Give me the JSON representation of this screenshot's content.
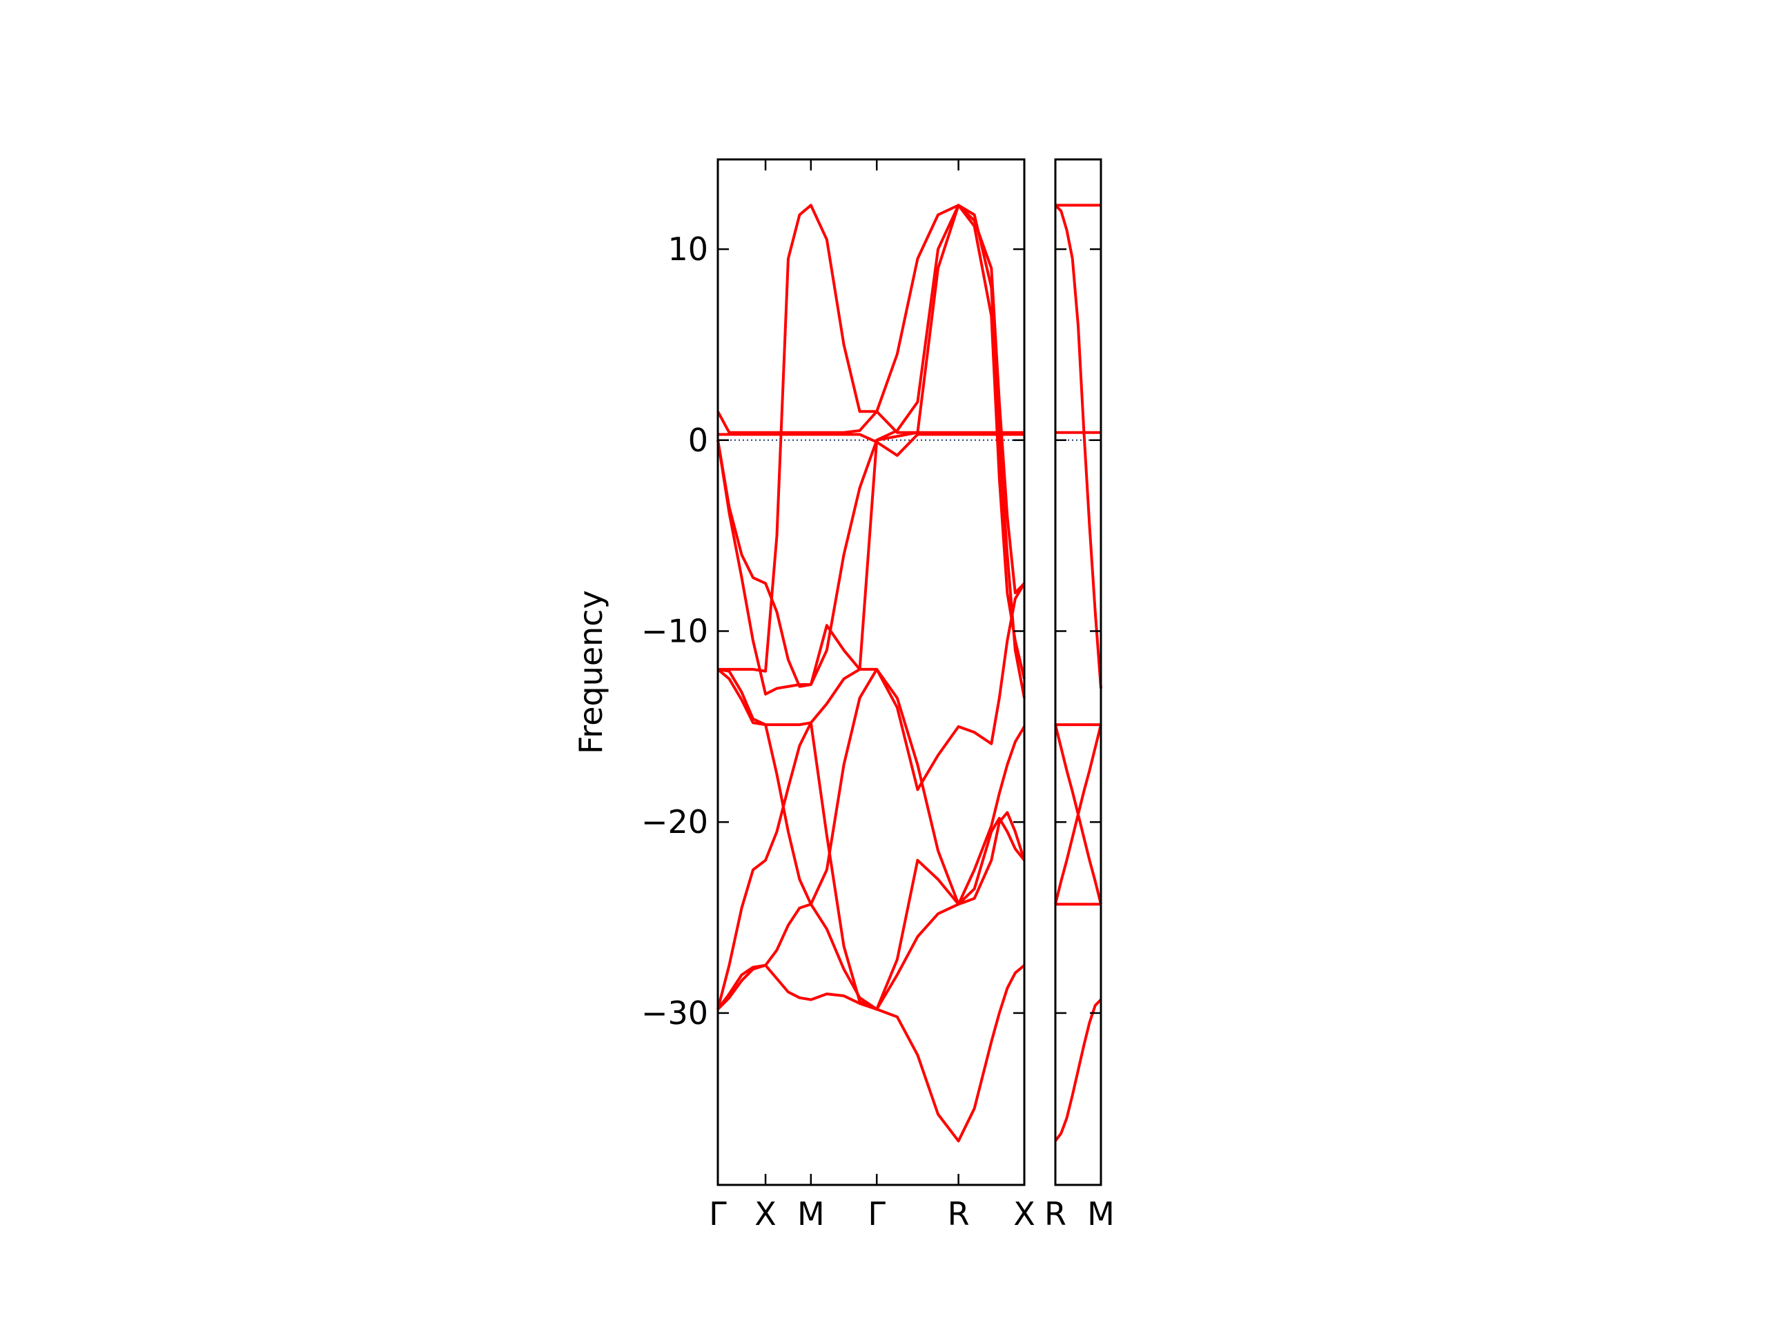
{
  "chart_data": [
    {
      "type": "line",
      "ylabel": "Frequency",
      "color": "#ff0000",
      "xlim": [
        0,
        270
      ],
      "ylim": [
        -39.0,
        14.7
      ],
      "xticks": [
        {
          "value": 0,
          "label": "Γ"
        },
        {
          "value": 42,
          "label": "X"
        },
        {
          "value": 82,
          "label": "M"
        },
        {
          "value": 140,
          "label": "Γ"
        },
        {
          "value": 212,
          "label": "R"
        },
        {
          "value": 270,
          "label": "X"
        }
      ],
      "yticks": [
        {
          "value": -30,
          "label": "−30"
        },
        {
          "value": -20,
          "label": "−20"
        },
        {
          "value": -10,
          "label": "−10"
        },
        0,
        10
      ],
      "ytick_labels": true,
      "hlines": [
        0
      ],
      "x": [
        0,
        10,
        21,
        31,
        42,
        52,
        62,
        72,
        82,
        96,
        111,
        125,
        140,
        158,
        176,
        194,
        212,
        226,
        241,
        248,
        255,
        262,
        270
      ],
      "series": [
        {
          "values": [
            -29.8,
            -29.2,
            -28.3,
            -27.7,
            -27.5,
            -28.2,
            -28.9,
            -29.2,
            -29.3,
            -29.0,
            -29.1,
            -29.5,
            -29.8,
            -30.2,
            -32.2,
            -35.3,
            -36.7,
            -35.0,
            -31.5,
            -30.0,
            -28.7,
            -27.9,
            -27.5
          ]
        },
        {
          "values": [
            -29.8,
            -29.0,
            -28.0,
            -27.6,
            -27.5,
            -26.7,
            -25.4,
            -24.5,
            -24.3,
            -25.6,
            -27.7,
            -29.2,
            -29.8,
            -27.2,
            -22.0,
            -23.0,
            -24.3,
            -23.5,
            -20.5,
            -19.8,
            -20.5,
            -21.4,
            -22.0
          ]
        },
        {
          "values": [
            -29.8,
            -27.5,
            -24.5,
            -22.5,
            -22.0,
            -20.5,
            -18.2,
            -16.0,
            -14.8,
            -20.7,
            -26.5,
            -29.4,
            -29.8,
            -28.0,
            -26.0,
            -24.8,
            -24.3,
            -22.5,
            -20.2,
            -18.5,
            -17.0,
            -15.8,
            -15.0
          ]
        },
        {
          "values": [
            -12.0,
            -12.5,
            -13.6,
            -14.8,
            -14.9,
            -17.5,
            -20.5,
            -23.0,
            -24.3,
            -22.5,
            -17.0,
            -13.5,
            -12.0,
            -13.5,
            -17.0,
            -21.5,
            -24.3,
            -24.0,
            -22.0,
            -20.0,
            -19.5,
            -20.5,
            -22.0
          ]
        },
        {
          "values": [
            -12.0,
            -12.1,
            -13.2,
            -14.6,
            -14.9,
            -14.9,
            -14.9,
            -14.9,
            -14.8,
            -13.8,
            -12.5,
            -12.0,
            -12.0,
            -14.0,
            -18.3,
            -16.5,
            -15.0,
            -15.3,
            -15.9,
            -13.5,
            -10.5,
            -8.3,
            -7.5
          ]
        },
        {
          "values": [
            -12.0,
            -12.0,
            -12.0,
            -12.0,
            -12.1,
            -5.0,
            9.5,
            11.8,
            12.3,
            10.5,
            5.0,
            1.5,
            1.5,
            4.5,
            9.5,
            11.8,
            12.3,
            11.2,
            6.5,
            -2.0,
            -8.0,
            -10.5,
            -12.5
          ]
        },
        {
          "values": [
            0,
            -3.5,
            -6.0,
            -7.2,
            -7.5,
            -9.0,
            -11.5,
            -12.9,
            -12.8,
            -9.7,
            -11.0,
            -12.0,
            0,
            0.5,
            2.0,
            10.0,
            12.3,
            11.8,
            8.0,
            0,
            -6.0,
            -11.0,
            -13.5
          ]
        },
        {
          "values": [
            0,
            -3.8,
            -7.2,
            -10.5,
            -13.3,
            -13.0,
            -12.9,
            -12.8,
            -12.8,
            -11.0,
            -6.0,
            -2.5,
            0,
            0.2,
            0.4,
            9.0,
            12.3,
            11.5,
            9.0,
            2.0,
            -4.0,
            -8.0,
            -7.5
          ]
        },
        {
          "values": [
            1.5,
            0.4,
            0.4,
            0.4,
            0.4,
            0.4,
            0.4,
            0.4,
            0.4,
            0.4,
            0.4,
            0.5,
            1.5,
            0.4,
            0.4,
            0.4,
            0.4,
            0.4,
            0.4,
            0.4,
            0.4,
            0.4,
            0.4
          ]
        },
        {
          "values": [
            0.3,
            0.3,
            0.3,
            0.3,
            0.3,
            0.3,
            0.3,
            0.3,
            0.3,
            0.3,
            0.3,
            0.3,
            -0.1,
            -0.8,
            0.3,
            0.3,
            0.3,
            0.3,
            0.3,
            0.3,
            0.3,
            0.3,
            0.3
          ]
        }
      ]
    },
    {
      "type": "line",
      "color": "#ff0000",
      "xlim": [
        0,
        40
      ],
      "ylim": [
        -39.0,
        14.7
      ],
      "xticks": [
        {
          "value": 0,
          "label": "R"
        },
        {
          "value": 40,
          "label": "M"
        }
      ],
      "yticks": [
        -30,
        -20,
        -10,
        0,
        10
      ],
      "ytick_labels": false,
      "hlines": [
        0
      ],
      "x": [
        0,
        5,
        10,
        15,
        20,
        25,
        30,
        35,
        40
      ],
      "series": [
        {
          "values": [
            12.3,
            12.3,
            12.3,
            12.3,
            12.3,
            12.3,
            12.3,
            12.3,
            12.3
          ]
        },
        {
          "values": [
            12.3,
            12.0,
            11.0,
            9.5,
            6.0,
            0.5,
            -4.5,
            -9.0,
            -13.0
          ]
        },
        {
          "values": [
            0.4,
            0.4,
            0.4,
            0.4,
            0.4,
            0.4,
            0.4,
            0.4,
            0.4
          ]
        },
        {
          "values": [
            -14.9,
            -14.9,
            -14.9,
            -14.9,
            -14.9,
            -14.9,
            -14.9,
            -14.9,
            -14.9
          ]
        },
        {
          "values": [
            -14.9,
            -16.1,
            -17.3,
            -18.4,
            -19.6,
            -20.8,
            -22.0,
            -23.1,
            -24.3
          ]
        },
        {
          "values": [
            -24.3,
            -23.1,
            -22.0,
            -20.8,
            -19.6,
            -18.4,
            -17.3,
            -16.1,
            -14.9
          ]
        },
        {
          "values": [
            -24.3,
            -24.3,
            -24.3,
            -24.3,
            -24.3,
            -24.3,
            -24.3,
            -24.3,
            -24.3
          ]
        },
        {
          "values": [
            -36.7,
            -36.3,
            -35.5,
            -34.3,
            -33.0,
            -31.7,
            -30.5,
            -29.6,
            -29.3
          ]
        }
      ]
    }
  ]
}
